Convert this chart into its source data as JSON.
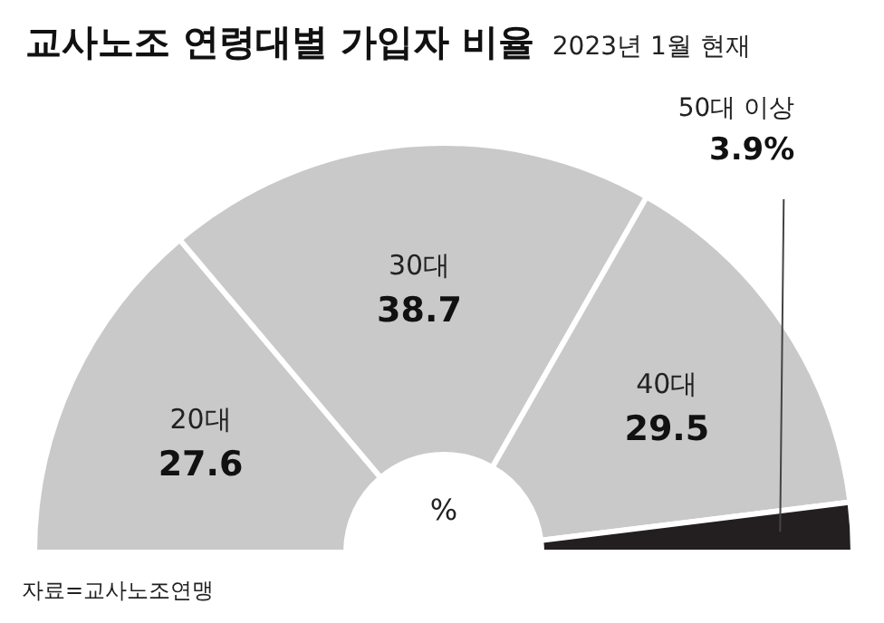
{
  "chart_data": {
    "type": "donut",
    "title": "교사노조 연령대별 가입자 비율",
    "subtitle": "2023년 1월 현재",
    "categories": [
      "20대",
      "30대",
      "40대",
      "50대 이상"
    ],
    "values": [
      27.6,
      38.7,
      29.5,
      3.9
    ],
    "value_labels": [
      "27.6",
      "38.7",
      "29.5",
      "3.9%"
    ],
    "colors": [
      "#c9c9c9",
      "#c9c9c9",
      "#c9c9c9",
      "#231f20"
    ],
    "annotations": [
      "%",
      "자료=교사노조연맹"
    ]
  }
}
